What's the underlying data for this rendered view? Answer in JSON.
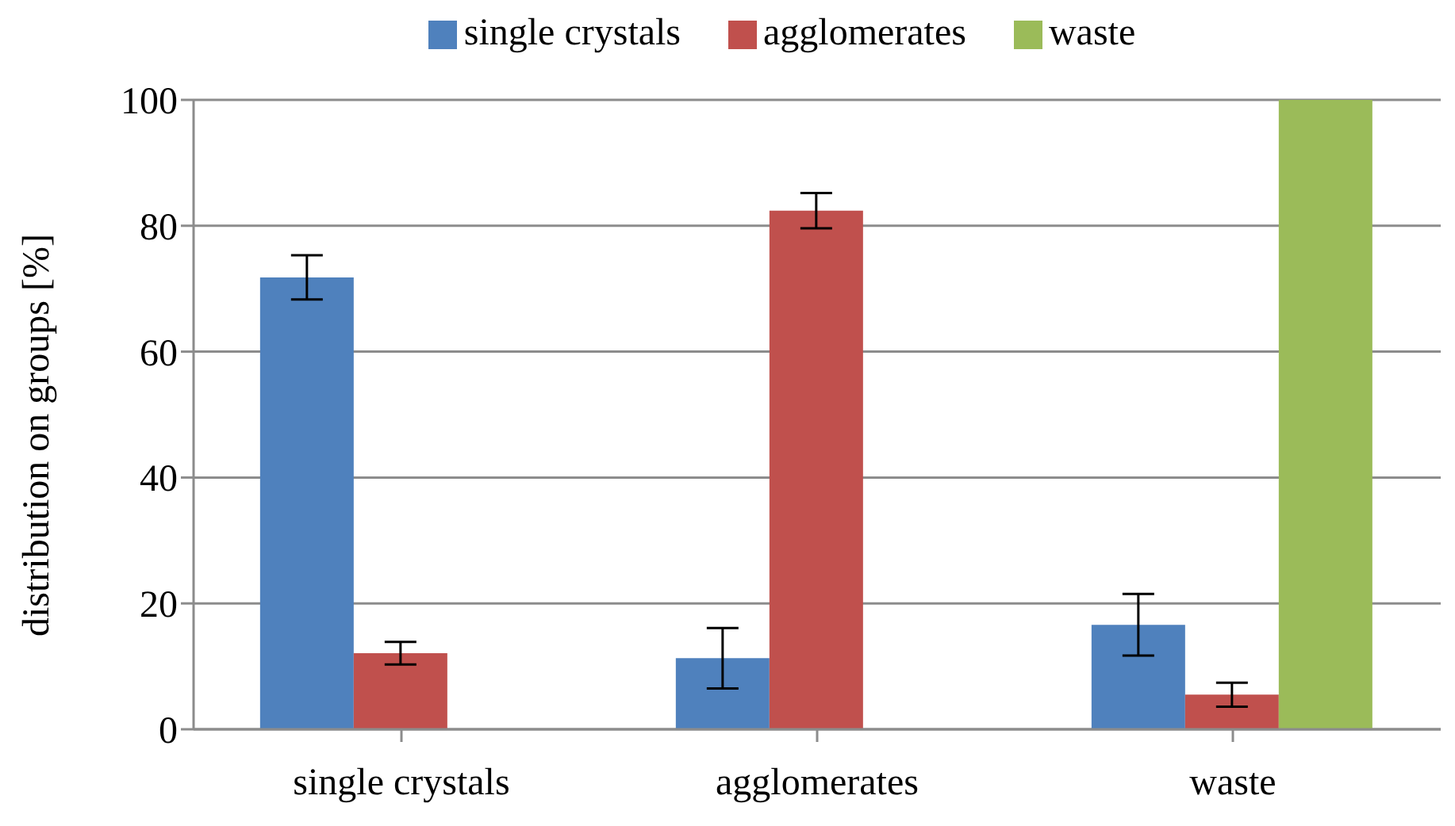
{
  "chart_data": {
    "type": "bar",
    "ylabel": "distribution on groups [%]",
    "categories": [
      "single crystals",
      "agglomerates",
      "waste"
    ],
    "series": [
      {
        "name": "single crystals",
        "color": "#4f81bd",
        "values": [
          71.8,
          11.3,
          16.6
        ],
        "errors": [
          3.5,
          4.8,
          4.9
        ]
      },
      {
        "name": "agglomerates",
        "color": "#c0504d",
        "values": [
          12.1,
          82.4,
          5.5
        ],
        "errors": [
          1.8,
          2.8,
          1.9
        ]
      },
      {
        "name": "waste",
        "color": "#9bbb59",
        "values": [
          null,
          null,
          100
        ],
        "errors": [
          null,
          null,
          0
        ]
      }
    ],
    "ylim": [
      0,
      100
    ],
    "yticks": [
      0,
      20,
      40,
      60,
      80,
      100
    ],
    "grid": "y",
    "legend": "top"
  }
}
